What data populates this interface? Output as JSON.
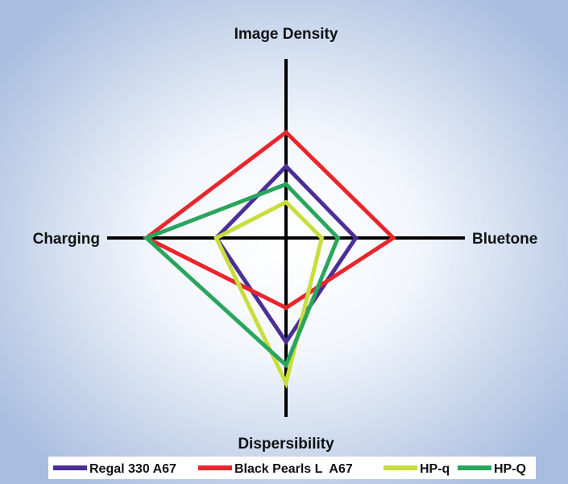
{
  "chart_data": {
    "type": "radar",
    "axes": [
      {
        "key": "image_density",
        "label": "Image Density",
        "direction": "top"
      },
      {
        "key": "bluetone",
        "label": "Bluetone",
        "direction": "right"
      },
      {
        "key": "dispersibility",
        "label": "Dispersibility",
        "direction": "bottom"
      },
      {
        "key": "charging",
        "label": "Charging",
        "direction": "left"
      }
    ],
    "scale_max": 10,
    "grid": false,
    "legend_position": "bottom",
    "colors": {
      "background_edge": "#a9bedf",
      "background_center": "#ffffff",
      "axis": "#000000"
    },
    "series": [
      {
        "name": "Regal 330 A67",
        "color": "#4b2f96",
        "values": {
          "image_density": 4.0,
          "bluetone": 3.9,
          "dispersibility": 5.8,
          "charging": 3.9
        }
      },
      {
        "name": "Black Pearls L  A67",
        "color": "#e8262b",
        "values": {
          "image_density": 5.9,
          "bluetone": 6.0,
          "dispersibility": 3.9,
          "charging": 7.8
        }
      },
      {
        "name": "HP-q",
        "color": "#c9dd3c",
        "values": {
          "image_density": 2.0,
          "bluetone": 2.0,
          "dispersibility": 8.1,
          "charging": 3.9
        }
      },
      {
        "name": "HP-Q",
        "color": "#2aa55d",
        "values": {
          "image_density": 3.0,
          "bluetone": 2.9,
          "dispersibility": 7.1,
          "charging": 7.8
        }
      }
    ]
  }
}
